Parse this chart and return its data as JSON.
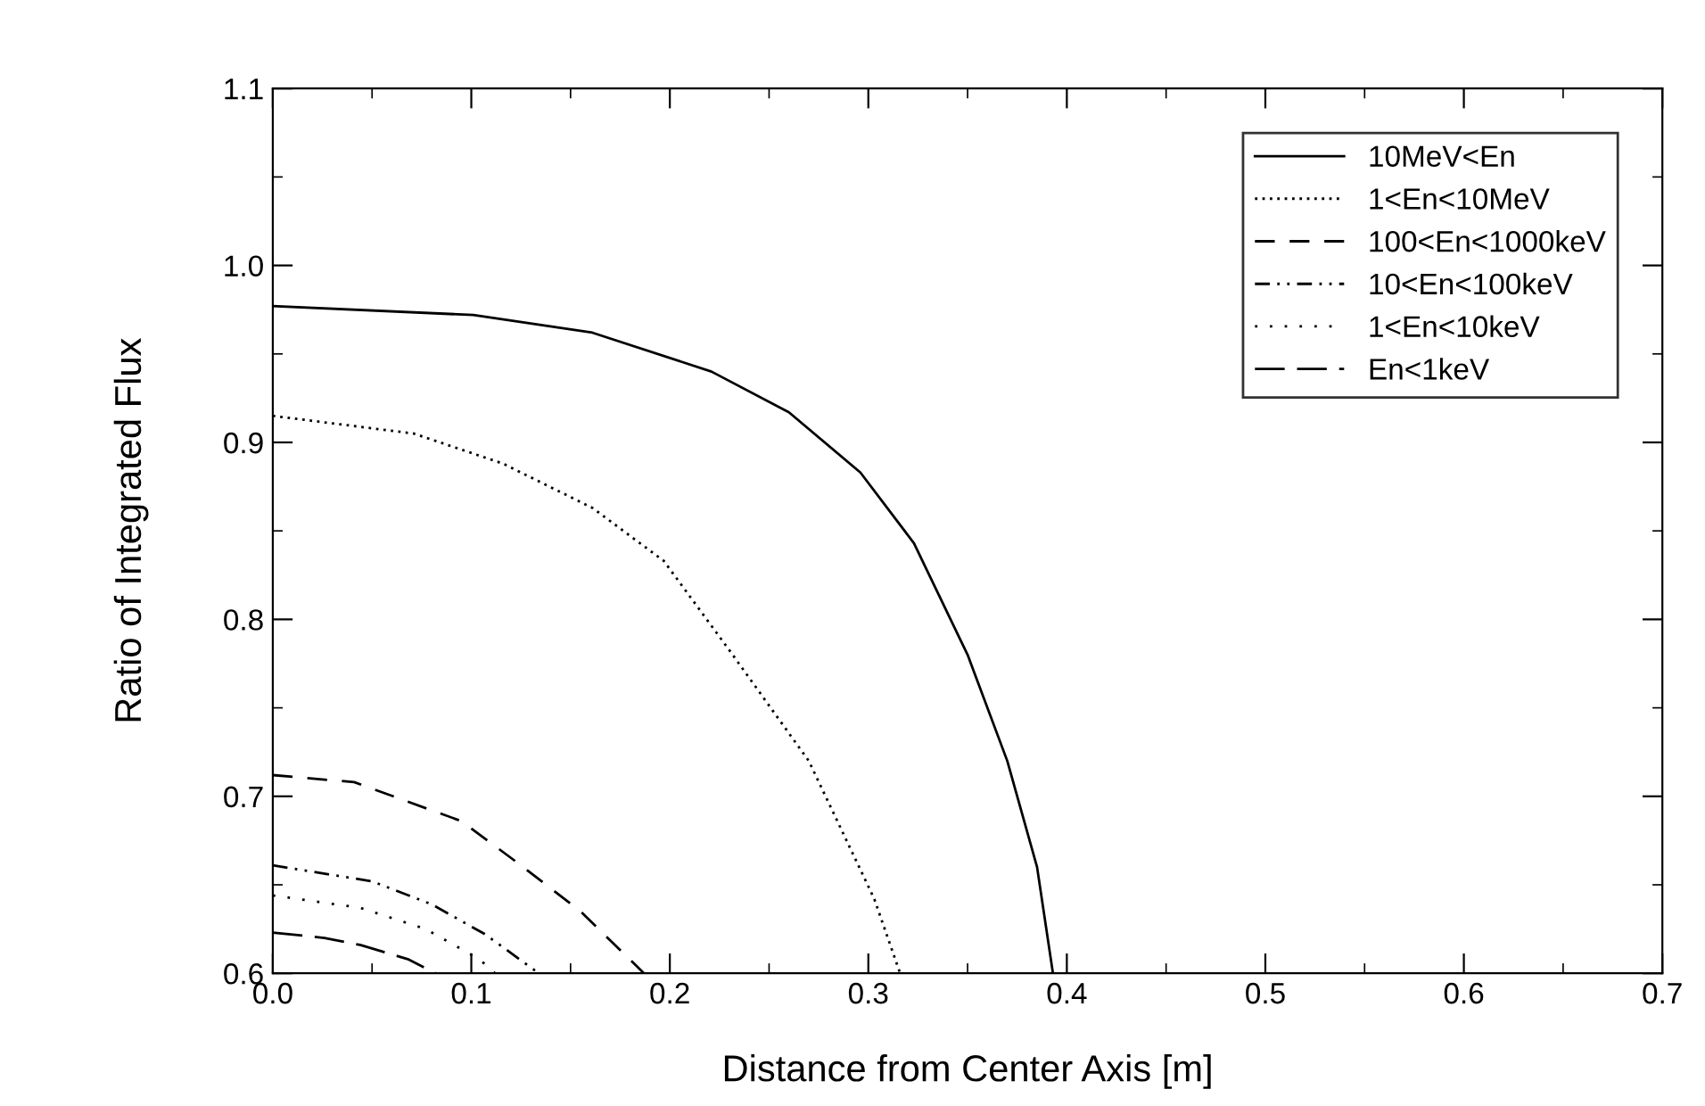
{
  "chart_data": {
    "type": "line",
    "xlabel": "Distance from Center Axis [m]",
    "ylabel": "Ratio of Integrated Flux",
    "xlim": [
      0.0,
      0.7
    ],
    "xticks": [
      {
        "value": 0.0,
        "label": "0.0"
      },
      0.1,
      0.2,
      0.3,
      0.4,
      0.5,
      0.6,
      0.7
    ],
    "ylim": [
      0.6,
      1.1
    ],
    "yticks": [
      0.6,
      0.7,
      0.8,
      0.9,
      {
        "value": 1.0,
        "label": "1.0"
      },
      1.1
    ],
    "grid": false,
    "legend": "top right",
    "marker": "none",
    "series": [
      {
        "name": "10MeV<En",
        "color": "#000000",
        "line_style": "solid",
        "x": [
          0,
          0.101,
          0.161,
          0.221,
          0.26,
          0.296,
          0.323,
          0.35,
          0.37,
          0.385,
          0.393
        ],
        "values": [
          0.977,
          0.972,
          0.962,
          0.94,
          0.917,
          0.883,
          0.843,
          0.78,
          0.72,
          0.66,
          0.6
        ]
      },
      {
        "name": "1<En<10MeV",
        "color": "#000000",
        "line_style": "dotted",
        "x": [
          0,
          0.071,
          0.116,
          0.161,
          0.197,
          0.231,
          0.27,
          0.303,
          0.316
        ],
        "values": [
          0.915,
          0.905,
          0.888,
          0.863,
          0.833,
          0.781,
          0.72,
          0.642,
          0.6
        ]
      },
      {
        "name": "100<En<1000keV",
        "color": "#000000",
        "line_style": "dashed",
        "x": [
          0,
          0.041,
          0.095,
          0.125,
          0.155,
          0.187
        ],
        "values": [
          0.712,
          0.708,
          0.686,
          0.661,
          0.635,
          0.6
        ]
      },
      {
        "name": "10<En<100keV",
        "color": "#000000",
        "line_style": "dashdotdot",
        "x": [
          0,
          0.05,
          0.08,
          0.107,
          0.134
        ],
        "values": [
          0.661,
          0.652,
          0.639,
          0.622,
          0.6
        ]
      },
      {
        "name": "1<En<10keV",
        "color": "#000000",
        "line_style": "sparsedot",
        "x": [
          0,
          0.044,
          0.077,
          0.104,
          0.112
        ],
        "values": [
          0.644,
          0.637,
          0.625,
          0.608,
          0.6
        ]
      },
      {
        "name": "En<1keV",
        "color": "#000000",
        "line_style": "longdash",
        "x": [
          0,
          0.026,
          0.044,
          0.068,
          0.082
        ],
        "values": [
          0.623,
          0.62,
          0.616,
          0.608,
          0.6
        ]
      }
    ]
  }
}
